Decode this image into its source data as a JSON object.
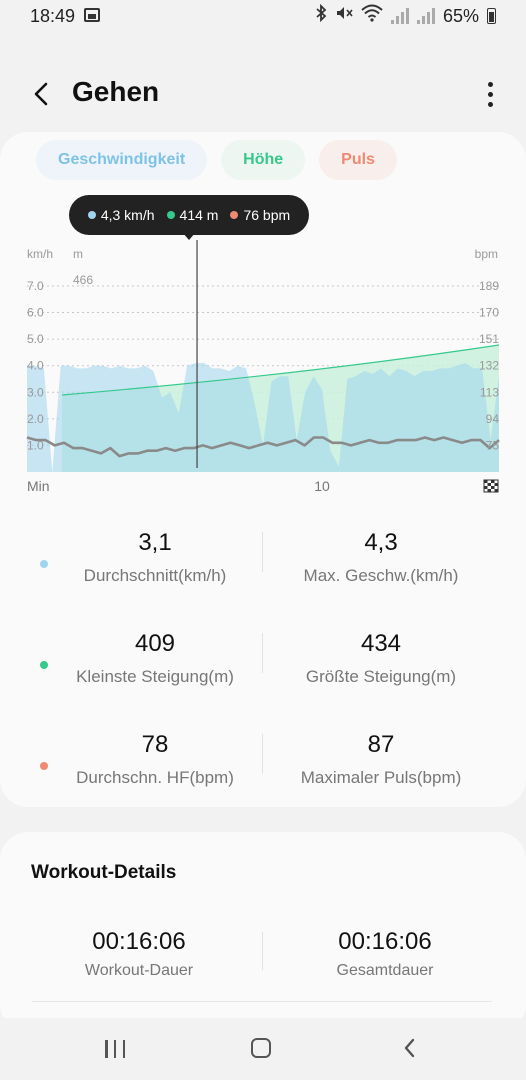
{
  "status_bar": {
    "time": "18:49",
    "battery": "65%",
    "icons": [
      "image-icon",
      "bluetooth-icon",
      "mute-icon",
      "wifi-icon",
      "signal-icon",
      "signal-icon",
      "battery-icon"
    ]
  },
  "header": {
    "title": "Gehen"
  },
  "chips": {
    "speed": "Geschwindigkeit",
    "altitude": "Höhe",
    "heart_rate": "Puls"
  },
  "tooltip": {
    "speed": "4,3 km/h",
    "altitude": "414 m",
    "heart_rate": "76 bpm"
  },
  "colors": {
    "speed": "#9fd4ef",
    "altitude": "#35c98c",
    "heart_rate": "#ee8a72",
    "pace_line": "#8a8a8a"
  },
  "chart_data": {
    "type": "area",
    "axis_labels": {
      "left_unit": "km/h",
      "left_unit2": "m",
      "right_unit": "bpm",
      "altitude_max": "466",
      "x_start": "Min",
      "x_mid": "10"
    },
    "left_ticks": [
      "7.0",
      "6.0",
      "5.0",
      "4.0",
      "3.0",
      "2.0",
      "1.0"
    ],
    "right_ticks": [
      "189",
      "170",
      "151",
      "132",
      "113",
      "94",
      "75"
    ],
    "speed_kmh": [
      4.0,
      4.0,
      3.9,
      0,
      4.0,
      4.0,
      3.9,
      3.9,
      4.0,
      4.0,
      3.9,
      4.0,
      3.9,
      3.9,
      4.0,
      3.8,
      2.8,
      3.0,
      2.2,
      4.0,
      4.1,
      4.1,
      3.9,
      3.9,
      3.8,
      4.0,
      3.9,
      2.6,
      1.0,
      3.4,
      3.6,
      3.6,
      1.2,
      3.0,
      3.6,
      3.1,
      0.8,
      0.2,
      3.5,
      3.6,
      3.8,
      3.7,
      3.9,
      3.6,
      3.9,
      3.8,
      3.6,
      3.8,
      3.8,
      3.9,
      3.9,
      4.0,
      4.1,
      3.9,
      3.9,
      1.2,
      3.6
    ],
    "altitude_trend": [
      409,
      434
    ],
    "pace_line": [
      1.3,
      1.2,
      1.2,
      1.0,
      1.1,
      0.9,
      0.9,
      0.8,
      0.7,
      0.9,
      0.6,
      0.7,
      0.7,
      0.8,
      0.8,
      0.9,
      0.8,
      0.9,
      0.9,
      1.0,
      0.9,
      1.0,
      1.1,
      1.0,
      0.9,
      1.0,
      1.1,
      1.0,
      1.1,
      1.2,
      1.0,
      1.3,
      1.3,
      1.1,
      1.1,
      1.0,
      1.1,
      1.2,
      1.1,
      1.1,
      1.2,
      1.2,
      1.2,
      1.3,
      1.2,
      1.3,
      1.2,
      1.1,
      1.2,
      1.2,
      0.9,
      1.2
    ],
    "marker_minute": 5.8
  },
  "stats": [
    {
      "left_value": "3,1",
      "left_label": "Durchschnitt(km/h)",
      "right_value": "4,3",
      "right_label": "Max. Geschw.(km/h)"
    },
    {
      "left_value": "409",
      "left_label": "Kleinste Steigung(m)",
      "right_value": "434",
      "right_label": "Größte Steigung(m)"
    },
    {
      "left_value": "78",
      "left_label": "Durchschn. HF(bpm)",
      "right_value": "87",
      "right_label": "Maximaler Puls(bpm)"
    }
  ],
  "workout": {
    "title": "Workout-Details",
    "duration_value": "00:16:06",
    "duration_label": "Workout-Dauer",
    "total_value": "00:16:06",
    "total_label": "Gesamtdauer"
  }
}
